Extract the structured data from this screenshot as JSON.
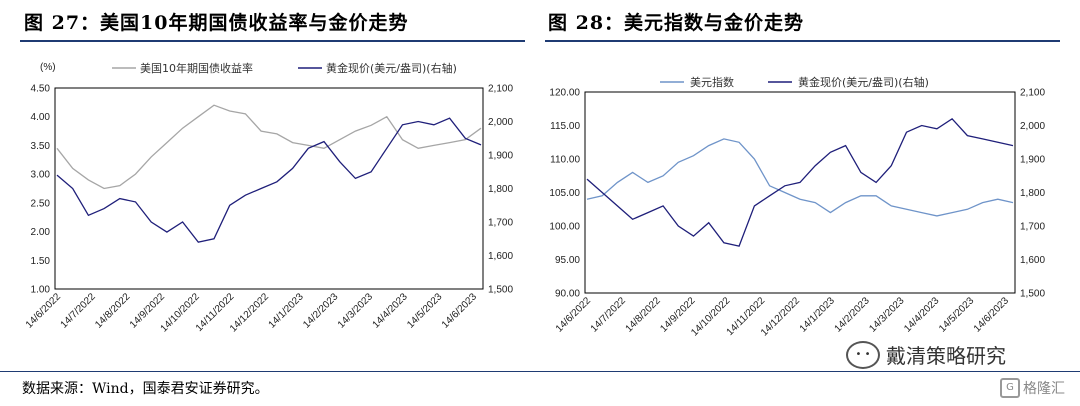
{
  "figures": {
    "left": {
      "number_title": "图 27：美国10年期国债收益率与金价走势"
    },
    "right": {
      "number_title": "图 28：美元指数与金价走势"
    }
  },
  "source_note": "数据来源：Wind，国泰君安证券研究。",
  "watermark": {
    "text": "戴清策略研究",
    "logo_text": "格隆汇",
    "icon": "wechat-bubble-icon"
  },
  "colors": {
    "grey_series": "#a6a6a6",
    "gold_series": "#1f1f7a",
    "usd_series": "#6f94c9"
  },
  "chart_data": [
    {
      "type": "line",
      "unit_label": "(%)",
      "legend_placement": "top",
      "x_ticks": [
        "14/6/2022",
        "14/7/2022",
        "14/8/2022",
        "14/9/2022",
        "14/10/2022",
        "14/11/2022",
        "14/12/2022",
        "14/1/2023",
        "14/2/2023",
        "14/3/2023",
        "14/4/2023",
        "14/5/2023",
        "14/6/2023"
      ],
      "y_left": {
        "ticks": [
          "1.00",
          "1.50",
          "2.00",
          "2.50",
          "3.00",
          "3.50",
          "4.00",
          "4.50"
        ],
        "range": [
          1.0,
          4.5
        ]
      },
      "y_right": {
        "ticks": [
          "1,500",
          "1,600",
          "1,700",
          "1,800",
          "1,900",
          "2,000",
          "2,100"
        ],
        "range": [
          1500,
          2100
        ]
      },
      "series": [
        {
          "name": "美国10年期国债收益率",
          "axis": "left",
          "color": "#a6a6a6",
          "values": [
            3.45,
            3.1,
            2.9,
            2.75,
            2.8,
            3.0,
            3.3,
            3.55,
            3.8,
            4.0,
            4.2,
            4.1,
            4.05,
            3.75,
            3.7,
            3.55,
            3.5,
            3.45,
            3.6,
            3.75,
            3.85,
            4.0,
            3.6,
            3.45,
            3.5,
            3.55,
            3.6,
            3.8
          ]
        },
        {
          "name": "黄金现价(美元/盎司)(右轴)",
          "axis": "right",
          "color": "#1f1f7a",
          "values": [
            1840,
            1800,
            1720,
            1740,
            1770,
            1760,
            1700,
            1670,
            1700,
            1640,
            1650,
            1750,
            1780,
            1800,
            1820,
            1860,
            1920,
            1940,
            1880,
            1830,
            1850,
            1920,
            1990,
            2000,
            1990,
            2010,
            1950,
            1930
          ]
        }
      ]
    },
    {
      "type": "line",
      "legend_placement": "top",
      "x_ticks": [
        "14/6/2022",
        "14/7/2022",
        "14/8/2022",
        "14/9/2022",
        "14/10/2022",
        "14/11/2022",
        "14/12/2022",
        "14/1/2023",
        "14/2/2023",
        "14/3/2023",
        "14/4/2023",
        "14/5/2023",
        "14/6/2023"
      ],
      "y_left": {
        "ticks": [
          "90.00",
          "95.00",
          "100.00",
          "105.00",
          "110.00",
          "115.00",
          "120.00"
        ],
        "range": [
          90,
          120
        ]
      },
      "y_right": {
        "ticks": [
          "1,500",
          "1,600",
          "1,700",
          "1,800",
          "1,900",
          "2,000",
          "2,100"
        ],
        "range": [
          1500,
          2100
        ]
      },
      "series": [
        {
          "name": "美元指数",
          "axis": "left",
          "color": "#6f94c9",
          "values": [
            104,
            104.5,
            106.5,
            108,
            106.5,
            107.5,
            109.5,
            110.5,
            112,
            113,
            112.5,
            110,
            106,
            105,
            104,
            103.5,
            102,
            103.5,
            104.5,
            104.5,
            103,
            102.5,
            102,
            101.5,
            102,
            102.5,
            103.5,
            104,
            103.5
          ]
        },
        {
          "name": "黄金现价(美元/盎司)(右轴)",
          "axis": "right",
          "color": "#1f1f7a",
          "values": [
            1840,
            1800,
            1760,
            1720,
            1740,
            1760,
            1700,
            1670,
            1710,
            1650,
            1640,
            1760,
            1790,
            1820,
            1830,
            1880,
            1920,
            1940,
            1860,
            1830,
            1880,
            1980,
            2000,
            1990,
            2020,
            1970,
            1960,
            1950,
            1940
          ]
        }
      ]
    }
  ]
}
